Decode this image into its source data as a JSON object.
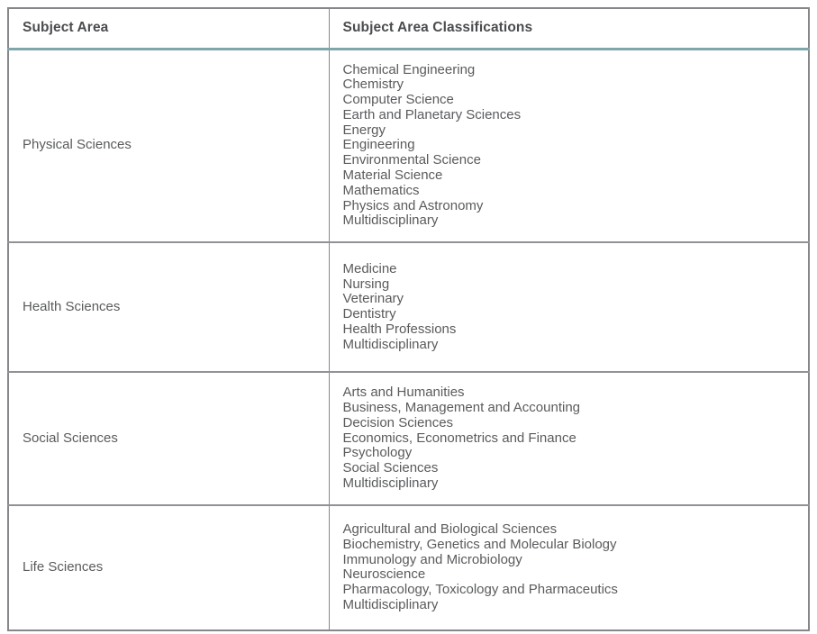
{
  "colors": {
    "accent_teal": "#7FA6AB",
    "border_gray": "#85878A",
    "header_text": "#4B4C4E",
    "body_text": "#5A5B5D"
  },
  "table": {
    "columns": [
      "Subject Area",
      "Subject Area Classifications"
    ],
    "rows": [
      {
        "area": "Physical Sciences",
        "classifications": [
          "Chemical Engineering",
          "Chemistry",
          "Computer Science",
          "Earth and Planetary Sciences",
          "Energy",
          "Engineering",
          "Environmental Science",
          "Material Science",
          "Mathematics",
          "Physics and Astronomy",
          "Multidisciplinary"
        ]
      },
      {
        "area": "Health Sciences",
        "classifications": [
          "Medicine",
          "Nursing",
          "Veterinary",
          "Dentistry",
          "Health Professions",
          "Multidisciplinary"
        ]
      },
      {
        "area": "Social Sciences",
        "classifications": [
          "Arts and Humanities",
          "Business, Management and Accounting",
          "Decision Sciences",
          "Economics, Econometrics and Finance",
          "Psychology",
          "Social Sciences",
          "Multidisciplinary"
        ]
      },
      {
        "area": "Life Sciences",
        "classifications": [
          "Agricultural and Biological Sciences",
          "Biochemistry, Genetics and Molecular Biology",
          "Immunology and Microbiology",
          "Neuroscience",
          "Pharmacology, Toxicology and Pharmaceutics",
          "Multidisciplinary"
        ]
      }
    ]
  }
}
